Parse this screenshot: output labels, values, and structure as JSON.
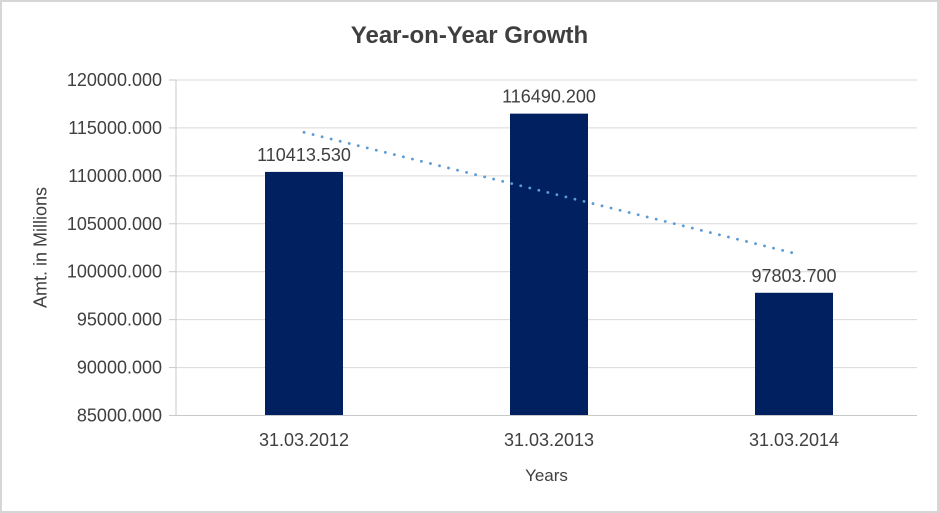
{
  "window": {
    "background": "#FFFFFF",
    "border_color": "#D6D6D6"
  },
  "chart_data": {
    "type": "bar",
    "title": "Year-on-Year Growth",
    "xlabel": "Years",
    "ylabel": "Amt. in Millions",
    "categories": [
      "31.03.2012",
      "31.03.2013",
      "31.03.2014"
    ],
    "values": [
      110413.53,
      116490.2,
      97803.7
    ],
    "data_labels": [
      "110413.530",
      "116490.200",
      "97803.700"
    ],
    "ylim": [
      85000,
      120000
    ],
    "ytick_step": 5000,
    "ytick_labels": [
      "120000.000",
      "115000.000",
      "110000.000",
      "105000.000",
      "100000.000",
      "95000.000",
      "90000.000",
      "85000.000"
    ],
    "grid": true,
    "legend": "none",
    "trendline": {
      "type": "linear",
      "style": "dotted",
      "color": "#5B9BD5"
    },
    "colors": {
      "bar": "#002060",
      "gridline": "#D9D9D9",
      "axis_line": "#C9C9C9",
      "tick_text": "#404040",
      "label_text": "#404040",
      "title_text": "#3F3F3F"
    }
  }
}
